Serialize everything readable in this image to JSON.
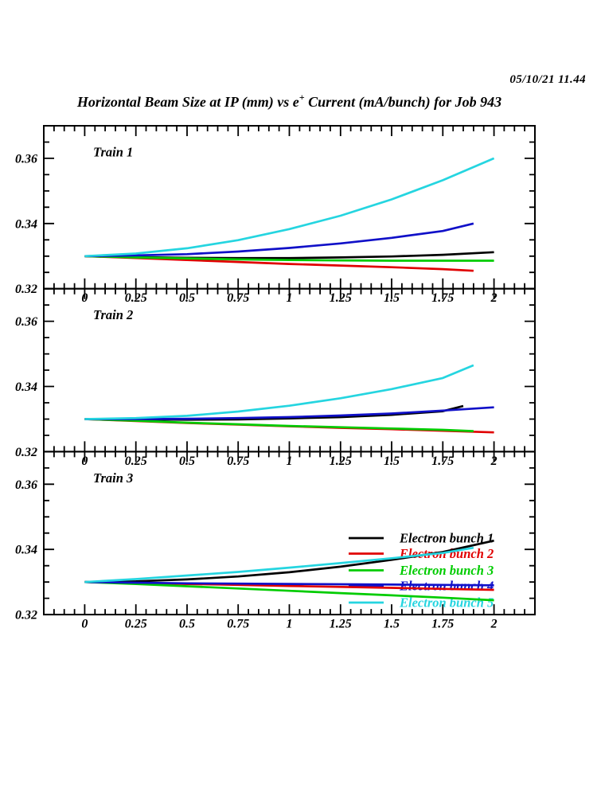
{
  "header": {
    "date": "05/10/21   11.44",
    "title_pre": "Horizontal Beam Size at IP (mm) vs e",
    "title_sup": "+",
    "title_post": " Current (mA/bunch) for Job 943"
  },
  "chart_data": {
    "type": "line",
    "title": "Horizontal Beam Size at IP (mm) vs e+ Current (mA/bunch) for Job 943",
    "timestamp": "05/10/21   11.44",
    "xlim": [
      -0.2,
      2.2
    ],
    "ylim": [
      0.32,
      0.37
    ],
    "xticks": {
      "major": [
        0,
        0.25,
        0.5,
        0.75,
        1,
        1.25,
        1.5,
        1.75,
        2
      ],
      "labels": [
        "0",
        "0.25",
        "0.5",
        "0.75",
        "1",
        "1.25",
        "1.5",
        "1.75",
        "2"
      ],
      "minor_step": 0.05
    },
    "yticks": {
      "major": [
        0.32,
        0.34,
        0.36
      ],
      "labels": [
        "0.32",
        "0.34",
        "0.36"
      ],
      "minor_step": 0.005
    },
    "x": [
      0,
      0.25,
      0.5,
      0.75,
      1,
      1.25,
      1.5,
      1.75,
      2
    ],
    "legend": {
      "position": "panel-3-right",
      "entries": [
        {
          "label": "Electron bunch 1",
          "color": "#000000"
        },
        {
          "label": "Electron bunch 2",
          "color": "#e00000"
        },
        {
          "label": "Electron bunch 3",
          "color": "#00cc00"
        },
        {
          "label": "Electron bunch 4",
          "color": "#1010c8"
        },
        {
          "label": "Electron bunch 5",
          "color": "#25d5e0"
        }
      ]
    },
    "panels": [
      {
        "label": "Train 1",
        "series": [
          {
            "name": "Electron bunch 1",
            "color": "#000000",
            "end_x": 2.0,
            "values": [
              0.33,
              0.3297,
              0.3295,
              0.3294,
              0.3294,
              0.3296,
              0.3299,
              0.3304,
              0.3312
            ]
          },
          {
            "name": "Electron bunch 2",
            "color": "#e00000",
            "end_x": 1.9,
            "values": [
              0.33,
              0.3294,
              0.3288,
              0.3282,
              0.3276,
              0.3271,
              0.3266,
              0.326,
              0.3255
            ]
          },
          {
            "name": "Electron bunch 3",
            "color": "#00cc00",
            "end_x": 2.0,
            "values": [
              0.33,
              0.3296,
              0.3293,
              0.329,
              0.3288,
              0.3287,
              0.3286,
              0.3286,
              0.3286
            ]
          },
          {
            "name": "Electron bunch 4",
            "color": "#1010c8",
            "end_x": 1.9,
            "values": [
              0.33,
              0.3302,
              0.3306,
              0.3314,
              0.3325,
              0.3339,
              0.3356,
              0.3377,
              0.34
            ]
          },
          {
            "name": "Electron bunch 5",
            "color": "#25d5e0",
            "end_x": 2.0,
            "values": [
              0.33,
              0.3308,
              0.3324,
              0.3349,
              0.3383,
              0.3424,
              0.3474,
              0.3533,
              0.36
            ]
          }
        ]
      },
      {
        "label": "Train 2",
        "series": [
          {
            "name": "Electron bunch 1",
            "color": "#000000",
            "end_x": 1.85,
            "values": [
              0.33,
              0.3299,
              0.3298,
              0.3299,
              0.3302,
              0.3306,
              0.3313,
              0.3324,
              0.334
            ]
          },
          {
            "name": "Electron bunch 2",
            "color": "#e00000",
            "end_x": 2.0,
            "values": [
              0.33,
              0.3294,
              0.3288,
              0.3283,
              0.3278,
              0.3273,
              0.3269,
              0.3264,
              0.3259
            ]
          },
          {
            "name": "Electron bunch 3",
            "color": "#00cc00",
            "end_x": 1.9,
            "values": [
              0.33,
              0.3295,
              0.3289,
              0.3284,
              0.3279,
              0.3275,
              0.3271,
              0.3267,
              0.3263
            ]
          },
          {
            "name": "Electron bunch 4",
            "color": "#1010c8",
            "end_x": 2.0,
            "values": [
              0.33,
              0.33,
              0.3301,
              0.3303,
              0.3306,
              0.3311,
              0.3317,
              0.3326,
              0.3336
            ]
          },
          {
            "name": "Electron bunch 5",
            "color": "#25d5e0",
            "end_x": 1.9,
            "values": [
              0.33,
              0.3303,
              0.331,
              0.3323,
              0.3341,
              0.3364,
              0.3392,
              0.3426,
              0.3465
            ]
          }
        ]
      },
      {
        "label": "Train 3",
        "series": [
          {
            "name": "Electron bunch 1",
            "color": "#000000",
            "end_x": 2.0,
            "values": [
              0.33,
              0.3302,
              0.3308,
              0.3317,
              0.333,
              0.3347,
              0.3368,
              0.3392,
              0.3427
            ]
          },
          {
            "name": "Electron bunch 2",
            "color": "#e00000",
            "end_x": 2.0,
            "values": [
              0.33,
              0.3297,
              0.3294,
              0.3291,
              0.3288,
              0.3285,
              0.3282,
              0.3279,
              0.3276
            ]
          },
          {
            "name": "Electron bunch 3",
            "color": "#00cc00",
            "end_x": 2.0,
            "values": [
              0.33,
              0.3294,
              0.3287,
              0.328,
              0.3273,
              0.3266,
              0.3259,
              0.3252,
              0.3244
            ]
          },
          {
            "name": "Electron bunch 4",
            "color": "#1010c8",
            "end_x": 2.0,
            "values": [
              0.33,
              0.3298,
              0.3296,
              0.3295,
              0.3294,
              0.3293,
              0.3292,
              0.3291,
              0.329
            ]
          },
          {
            "name": "Electron bunch 5",
            "color": "#25d5e0",
            "end_x": 1.9,
            "values": [
              0.33,
              0.3309,
              0.332,
              0.3331,
              0.3344,
              0.3358,
              0.3373,
              0.3389,
              0.3405
            ]
          }
        ]
      }
    ]
  }
}
